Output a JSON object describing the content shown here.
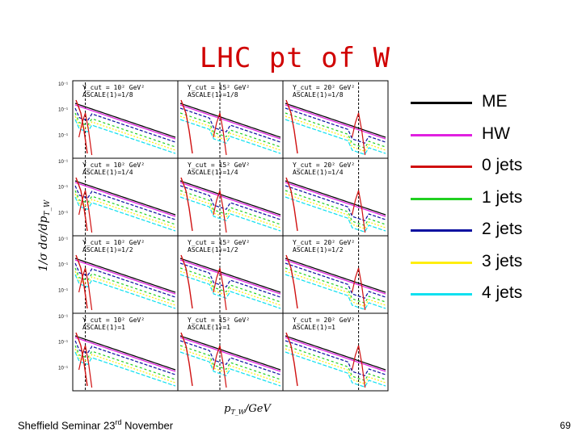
{
  "slide": {
    "title": "LHC pt of W",
    "footer_text": "Sheffield Seminar 23",
    "footer_sup": "rd",
    "footer_tail": " November",
    "page_number": "69"
  },
  "chart_data": {
    "type": "line",
    "ylabel": "1/σ dσ/dp",
    "ylabel_sub": "T_W",
    "xlabel": "p",
    "xlabel_sub": "T_W",
    "xlabel_unit": "/GeV",
    "grid": "4x3 panels",
    "legend_position": "right",
    "panel_labels": {
      "columns": [
        "Y_cut = 10² GeV²",
        "Y_cut = 15² GeV²",
        "Y_cut = 20² GeV²"
      ],
      "rows": [
        "ASCALE(1)=1/8",
        "ASCALE(1)=1/4",
        "ASCALE(1)=1/2",
        "ASCALE(1)=1"
      ]
    },
    "series": [
      {
        "name": "ME",
        "color": "#000000"
      },
      {
        "name": "HW",
        "color": "#e020e0"
      },
      {
        "name": "0 jets",
        "color": "#d01010"
      },
      {
        "name": "1 jets",
        "color": "#20d020"
      },
      {
        "name": "2 jets",
        "color": "#0a10a0"
      },
      {
        "name": "3 jets",
        "color": "#ffee10"
      },
      {
        "name": "4 jets",
        "color": "#10e0f0"
      }
    ]
  }
}
